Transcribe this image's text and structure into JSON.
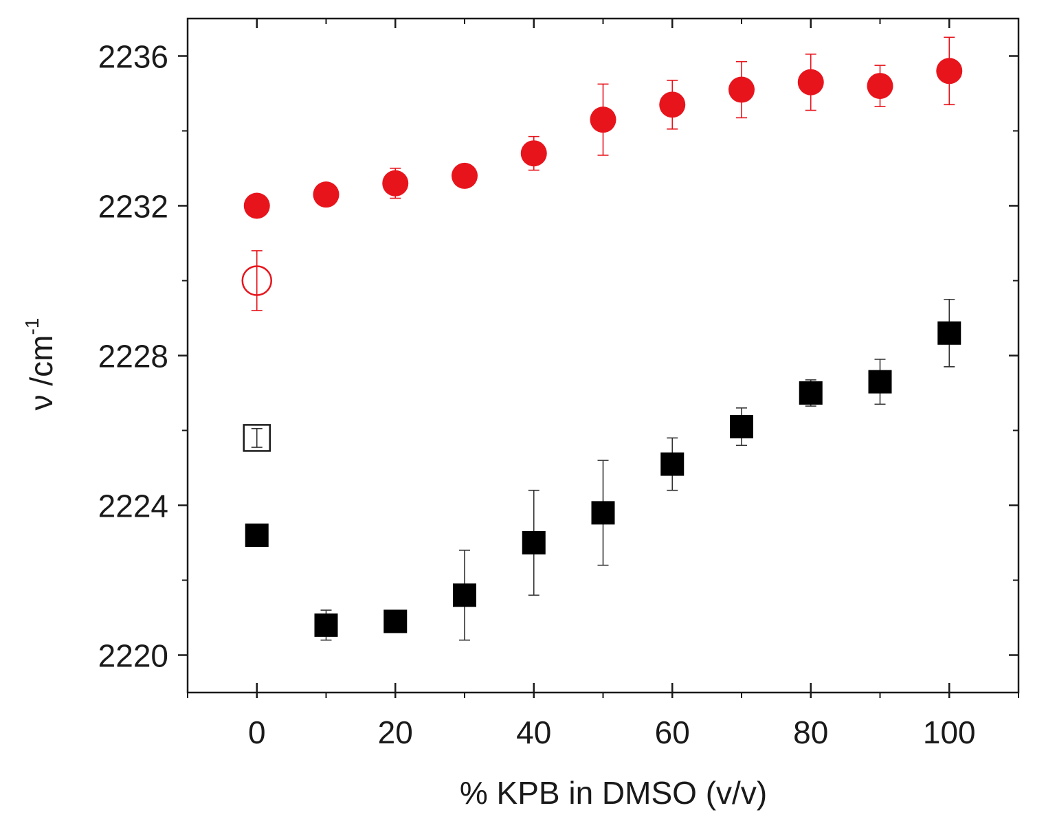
{
  "chart_data": {
    "type": "scatter",
    "title": "",
    "xlabel": "% KPB in DMSO (v/v)",
    "ylabel_main": "ν /cm",
    "ylabel_sup": "-1",
    "xlim": [
      -10,
      110
    ],
    "ylim": [
      2219,
      2237
    ],
    "x_ticks": [
      0,
      20,
      40,
      60,
      80,
      100
    ],
    "x_minor_ticks": [
      -10,
      10,
      30,
      50,
      70,
      90,
      110
    ],
    "x_tick_labels": [
      "0",
      "20",
      "40",
      "60",
      "80",
      "100"
    ],
    "y_ticks": [
      2220,
      2224,
      2228,
      2232,
      2236
    ],
    "y_minor_ticks": [
      2222,
      2226,
      2230,
      2234
    ],
    "y_tick_labels": [
      "2220",
      "2224",
      "2228",
      "2232",
      "2236"
    ],
    "series": [
      {
        "name": "red-filled-circles",
        "marker": "circle",
        "filled": true,
        "color": "#e8141c",
        "x": [
          0,
          10,
          20,
          30,
          40,
          50,
          60,
          70,
          80,
          90,
          100
        ],
        "y": [
          2232.0,
          2232.3,
          2232.6,
          2232.8,
          2233.4,
          2234.3,
          2234.7,
          2235.1,
          2235.3,
          2235.2,
          2235.6
        ],
        "err": [
          0,
          0,
          0.4,
          0,
          0.45,
          0.95,
          0.65,
          0.75,
          0.75,
          0.55,
          0.9
        ]
      },
      {
        "name": "red-open-circle",
        "marker": "circle",
        "filled": false,
        "color": "#e8141c",
        "x": [
          0
        ],
        "y": [
          2230.0
        ],
        "err": [
          0.8
        ]
      },
      {
        "name": "black-filled-squares",
        "marker": "square",
        "filled": true,
        "color": "#000000",
        "x": [
          0,
          10,
          20,
          30,
          40,
          50,
          60,
          70,
          80,
          90,
          100
        ],
        "y": [
          2223.2,
          2220.8,
          2220.9,
          2221.6,
          2223.0,
          2223.8,
          2225.1,
          2226.1,
          2227.0,
          2227.3,
          2228.6
        ],
        "err": [
          0,
          0.4,
          0,
          1.2,
          1.4,
          1.4,
          0.7,
          0.5,
          0.35,
          0.6,
          0.9
        ]
      },
      {
        "name": "black-open-square",
        "marker": "square",
        "filled": false,
        "color": "#1a1a1a",
        "x": [
          0
        ],
        "y": [
          2225.8
        ],
        "err": [
          0.25
        ]
      }
    ]
  }
}
